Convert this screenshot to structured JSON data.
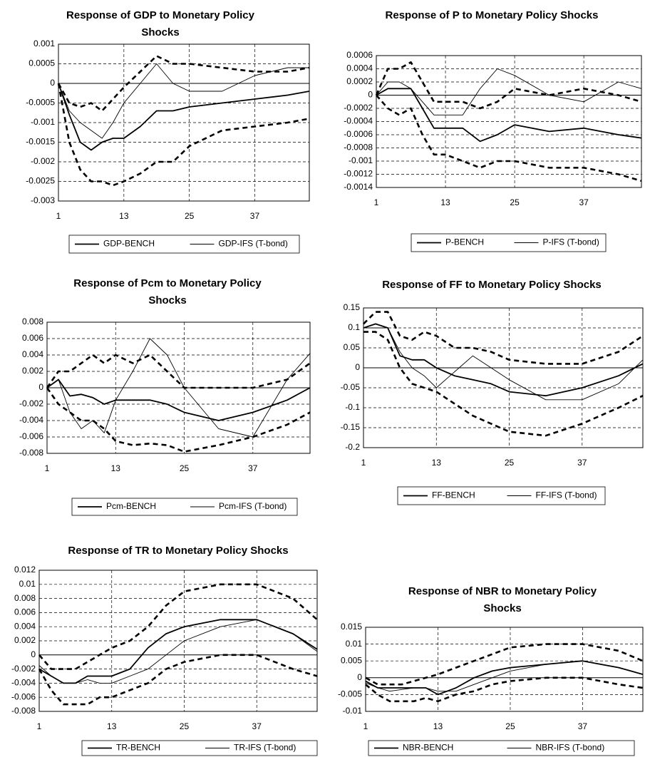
{
  "chart_data": [
    {
      "type": "line",
      "title": "Response of GDP to Monetary Policy Shocks",
      "x": [
        1,
        3,
        5,
        7,
        9,
        11,
        13,
        16,
        19,
        22,
        25,
        31,
        37,
        43,
        47
      ],
      "xlim": [
        1,
        47
      ],
      "xticks": [
        1,
        13,
        25,
        37
      ],
      "ylim": [
        -0.003,
        0.001
      ],
      "yticks": [
        0.001,
        0.0005,
        0,
        -0.0005,
        -0.001,
        -0.0015,
        -0.002,
        -0.0025,
        -0.003
      ],
      "grid": true,
      "series": [
        {
          "name": "GDP-BENCH",
          "color": "#000",
          "style": "solid-thick",
          "values": [
            0,
            -0.0008,
            -0.0015,
            -0.0017,
            -0.0015,
            -0.0014,
            -0.0014,
            -0.0011,
            -0.0007,
            -0.0007,
            -0.0006,
            -0.0005,
            -0.0004,
            -0.0003,
            -0.0002
          ]
        },
        {
          "name": "GDP-IFS (T-bond)",
          "color": "#000",
          "style": "solid-thin",
          "values": [
            0,
            -0.0007,
            -0.001,
            -0.0012,
            -0.0014,
            -0.001,
            -0.0005,
            0,
            0.0005,
            0,
            -0.0002,
            -0.0002,
            0.0002,
            0.0004,
            0.0004
          ]
        },
        {
          "color": "#000",
          "style": "dashed",
          "values": [
            0,
            -0.0005,
            -0.0006,
            -0.0005,
            -0.0007,
            -0.0004,
            -0.0001,
            0.0003,
            0.0007,
            0.0005,
            0.0005,
            0.0004,
            0.0003,
            0.0003,
            0.0004
          ]
        },
        {
          "color": "#000",
          "style": "dashed",
          "values": [
            0,
            -0.0015,
            -0.0022,
            -0.0025,
            -0.0025,
            -0.0026,
            -0.0025,
            -0.0023,
            -0.002,
            -0.002,
            -0.0016,
            -0.0012,
            -0.0011,
            -0.001,
            -0.0009
          ]
        }
      ]
    },
    {
      "type": "line",
      "title": "Response of P to Monetary Policy Shocks",
      "x": [
        1,
        3,
        5,
        7,
        9,
        11,
        13,
        16,
        19,
        22,
        25,
        31,
        37,
        43,
        47
      ],
      "xlim": [
        1,
        47
      ],
      "xticks": [
        1,
        13,
        25,
        37
      ],
      "ylim": [
        -0.0014,
        0.0006
      ],
      "yticks": [
        0.0006,
        0.0004,
        0.0002,
        0,
        -0.0002,
        -0.0004,
        -0.0006,
        -0.0008,
        -0.001,
        -0.0012,
        -0.0014
      ],
      "grid": true,
      "series": [
        {
          "name": "P-BENCH",
          "color": "#000",
          "style": "solid-thick",
          "values": [
            0,
            0.0001,
            0.0001,
            0.0001,
            -0.0002,
            -0.0005,
            -0.0005,
            -0.0005,
            -0.0007,
            -0.0006,
            -0.00045,
            -0.00055,
            -0.0005,
            -0.0006,
            -0.00065
          ]
        },
        {
          "name": "P-IFS (T-bond)",
          "color": "#000",
          "style": "solid-thin",
          "values": [
            0,
            0.0002,
            0.0002,
            0.0001,
            -0.0001,
            -0.0003,
            -0.0003,
            -0.0003,
            0.0001,
            0.0004,
            0.0003,
            0,
            -0.0001,
            0.0002,
            0.0001
          ]
        },
        {
          "color": "#000",
          "style": "dashed",
          "values": [
            0,
            0.0004,
            0.0004,
            0.0005,
            0.0002,
            -0.0001,
            -0.0001,
            -0.0001,
            -0.0002,
            -0.0001,
            0.0001,
            0,
            0.0001,
            0,
            -0.0001
          ]
        },
        {
          "color": "#000",
          "style": "dashed",
          "values": [
            0,
            -0.0002,
            -0.0003,
            -0.0002,
            -0.0006,
            -0.0009,
            -0.0009,
            -0.001,
            -0.0011,
            -0.001,
            -0.001,
            -0.0011,
            -0.0011,
            -0.0012,
            -0.0013
          ]
        }
      ]
    },
    {
      "type": "line",
      "title": "Response of Pcm to Monetary Policy Shocks",
      "x": [
        1,
        3,
        5,
        7,
        9,
        11,
        13,
        16,
        19,
        22,
        25,
        31,
        37,
        43,
        47
      ],
      "xlim": [
        1,
        47
      ],
      "xticks": [
        1,
        13,
        25,
        37
      ],
      "ylim": [
        -0.008,
        0.008
      ],
      "yticks": [
        0.008,
        0.006,
        0.004,
        0.002,
        0,
        -0.002,
        -0.004,
        -0.006,
        -0.008
      ],
      "grid": true,
      "series": [
        {
          "name": "Pcm-BENCH",
          "color": "#000",
          "style": "solid-thick",
          "values": [
            0,
            0.001,
            -0.001,
            -0.0008,
            -0.0012,
            -0.002,
            -0.0015,
            -0.0015,
            -0.0015,
            -0.002,
            -0.003,
            -0.004,
            -0.003,
            -0.0015,
            0
          ]
        },
        {
          "name": "Pcm-IFS (T-bond)",
          "color": "#000",
          "style": "solid-thin",
          "values": [
            0,
            0.001,
            -0.003,
            -0.005,
            -0.004,
            -0.0055,
            -0.0015,
            0.002,
            0.006,
            0.004,
            0,
            -0.005,
            -0.006,
            0.001,
            0.0042
          ]
        },
        {
          "color": "#000",
          "style": "dashed",
          "values": [
            0,
            0.002,
            0.002,
            0.003,
            0.004,
            0.003,
            0.004,
            0.003,
            0.004,
            0.002,
            0,
            0,
            0,
            0.001,
            0.003
          ]
        },
        {
          "color": "#000",
          "style": "dashed",
          "values": [
            0,
            -0.002,
            -0.003,
            -0.004,
            -0.004,
            -0.005,
            -0.0065,
            -0.007,
            -0.0068,
            -0.007,
            -0.0078,
            -0.007,
            -0.006,
            -0.0045,
            -0.003
          ]
        }
      ]
    },
    {
      "type": "line",
      "title": "Response of FF to Monetary Policy Shocks",
      "x": [
        1,
        3,
        5,
        7,
        9,
        11,
        13,
        16,
        19,
        22,
        25,
        31,
        37,
        43,
        47
      ],
      "xlim": [
        1,
        47
      ],
      "xticks": [
        1,
        13,
        25,
        37
      ],
      "ylim": [
        -0.2,
        0.15
      ],
      "yticks": [
        0.15,
        0.1,
        0.05,
        0,
        -0.05,
        -0.1,
        -0.15,
        -0.2
      ],
      "grid": true,
      "series": [
        {
          "name": "FF-BENCH",
          "color": "#000",
          "style": "solid-thick",
          "values": [
            0.1,
            0.11,
            0.1,
            0.03,
            0.02,
            0.02,
            0,
            -0.02,
            -0.03,
            -0.04,
            -0.06,
            -0.07,
            -0.05,
            -0.02,
            0.01
          ]
        },
        {
          "name": "FF-IFS (T-bond)",
          "color": "#000",
          "style": "solid-thin",
          "values": [
            0.1,
            0.1,
            0.1,
            0.04,
            0,
            -0.02,
            -0.05,
            -0.01,
            0.03,
            0,
            -0.03,
            -0.08,
            -0.08,
            -0.04,
            0.02
          ]
        },
        {
          "color": "#000",
          "style": "dashed",
          "values": [
            0.11,
            0.14,
            0.14,
            0.08,
            0.07,
            0.09,
            0.08,
            0.05,
            0.05,
            0.04,
            0.02,
            0.01,
            0.01,
            0.04,
            0.08
          ]
        },
        {
          "color": "#000",
          "style": "dashed",
          "values": [
            0.09,
            0.09,
            0.07,
            0,
            -0.04,
            -0.05,
            -0.06,
            -0.09,
            -0.12,
            -0.14,
            -0.16,
            -0.17,
            -0.14,
            -0.1,
            -0.07
          ]
        }
      ]
    },
    {
      "type": "line",
      "title": "Response of TR to Monetary Policy Shocks",
      "x": [
        1,
        3,
        5,
        7,
        9,
        11,
        13,
        16,
        19,
        22,
        25,
        31,
        37,
        43,
        47
      ],
      "xlim": [
        1,
        47
      ],
      "xticks": [
        1,
        13,
        25,
        37
      ],
      "ylim": [
        -0.008,
        0.012
      ],
      "yticks": [
        0.012,
        0.01,
        0.008,
        0.006,
        0.004,
        0.002,
        0,
        -0.002,
        -0.004,
        -0.006,
        -0.008
      ],
      "grid": true,
      "series": [
        {
          "name": "TR-BENCH",
          "color": "#000",
          "style": "solid-thick",
          "values": [
            -0.002,
            -0.003,
            -0.004,
            -0.004,
            -0.003,
            -0.003,
            -0.003,
            -0.002,
            0.001,
            0.003,
            0.004,
            0.005,
            0.005,
            0.003,
            0.0008
          ]
        },
        {
          "name": "TR-IFS (T-bond)",
          "color": "#000",
          "style": "solid-thin",
          "values": [
            -0.0015,
            -0.003,
            -0.004,
            -0.004,
            -0.0035,
            -0.004,
            -0.004,
            -0.003,
            -0.002,
            0,
            0.002,
            0.004,
            0.005,
            0.003,
            0.0005
          ]
        },
        {
          "color": "#000",
          "style": "dashed",
          "values": [
            0,
            -0.002,
            -0.002,
            -0.002,
            -0.001,
            0,
            0.001,
            0.002,
            0.004,
            0.007,
            0.009,
            0.01,
            0.01,
            0.008,
            0.005
          ]
        },
        {
          "color": "#000",
          "style": "dashed",
          "values": [
            -0.002,
            -0.005,
            -0.007,
            -0.007,
            -0.007,
            -0.006,
            -0.006,
            -0.005,
            -0.004,
            -0.002,
            -0.001,
            0,
            0,
            -0.002,
            -0.003
          ]
        }
      ]
    },
    {
      "type": "line",
      "title": "Response of NBR to Monetary Policy Shocks",
      "x": [
        1,
        3,
        5,
        7,
        9,
        11,
        13,
        16,
        19,
        22,
        25,
        31,
        37,
        43,
        47
      ],
      "xlim": [
        1,
        47
      ],
      "xticks": [
        1,
        13,
        25,
        37
      ],
      "ylim": [
        -0.01,
        0.015
      ],
      "yticks": [
        0.015,
        0.01,
        0.005,
        0,
        -0.005,
        -0.01
      ],
      "grid": true,
      "series": [
        {
          "name": "NBR-BENCH",
          "color": "#000",
          "style": "solid-thick",
          "values": [
            -0.001,
            -0.003,
            -0.003,
            -0.003,
            -0.003,
            -0.003,
            -0.005,
            -0.003,
            0,
            0.002,
            0.003,
            0.004,
            0.005,
            0.003,
            0.001
          ]
        },
        {
          "name": "NBR-IFS (T-bond)",
          "color": "#000",
          "style": "solid-thin",
          "values": [
            -0.0015,
            -0.003,
            -0.004,
            -0.0035,
            -0.003,
            -0.003,
            -0.004,
            -0.004,
            -0.002,
            0,
            0.002,
            0.004,
            0.005,
            0.003,
            0.001
          ]
        },
        {
          "color": "#000",
          "style": "dashed",
          "values": [
            0,
            -0.002,
            -0.002,
            -0.002,
            -0.001,
            0,
            0.001,
            0.003,
            0.005,
            0.007,
            0.009,
            0.01,
            0.01,
            0.008,
            0.005
          ]
        },
        {
          "color": "#000",
          "style": "dashed",
          "values": [
            -0.002,
            -0.005,
            -0.007,
            -0.007,
            -0.007,
            -0.006,
            -0.007,
            -0.005,
            -0.004,
            -0.002,
            -0.001,
            0,
            0,
            -0.002,
            -0.003
          ]
        }
      ]
    }
  ]
}
